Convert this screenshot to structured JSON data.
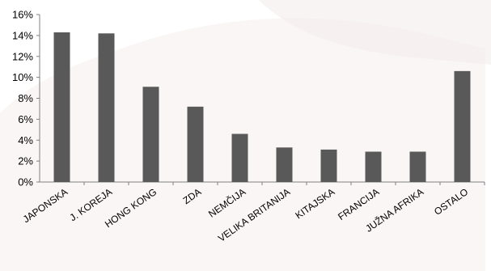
{
  "chart_data": {
    "type": "bar",
    "categories": [
      "JAPONSKA",
      "J. KOREJA",
      "HONG KONG",
      "ZDA",
      "NEMČIJA",
      "VELIKA BRITANIJA",
      "KITAJSKA",
      "FRANCIJA",
      "JUŽNA AFRIKA",
      "OSTALO"
    ],
    "values": [
      14.3,
      14.2,
      9.1,
      7.2,
      4.6,
      3.3,
      3.1,
      2.9,
      2.9,
      10.6
    ],
    "yticks": [
      "0%",
      "2%",
      "4%",
      "6%",
      "8%",
      "10%",
      "12%",
      "14%",
      "16%"
    ],
    "ylim": [
      0,
      16
    ],
    "ytick_step": 2,
    "grid": false,
    "legend": "none",
    "colors": {
      "bar": "#595959",
      "axis": "#808080",
      "background": "#ffffff",
      "decor": "#f0e6e6"
    }
  }
}
